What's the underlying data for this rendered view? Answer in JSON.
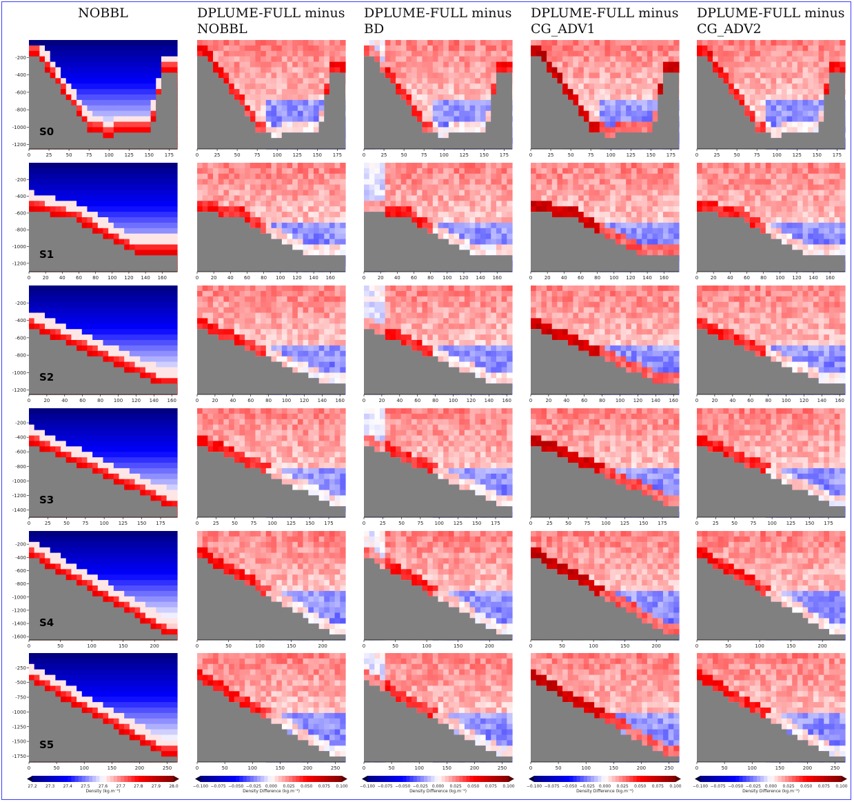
{
  "column_titles": [
    {
      "line1": "NOBBL",
      "line2": ""
    },
    {
      "line1": "DPLUME-FULL   minus",
      "line2": "NOBBL"
    },
    {
      "line1": "DPLUME-FULL   minus",
      "line2": "BD"
    },
    {
      "line1": "DPLUME-FULL   minus",
      "line2": "CG_ADV1"
    },
    {
      "line1": "DPLUME-FULL   minus",
      "line2": "CG_ADV2"
    }
  ],
  "colors": {
    "positive": "#b40426",
    "negative": "#0000ff",
    "neutral": "#ffffff",
    "topography": "#808080",
    "frame_border": "#3a3aff"
  },
  "chart_data": {
    "type": "heatmap",
    "layout": "6 rows (sections) x 5 columns (experiments)",
    "rows": [
      {
        "section": "S0",
        "xticks": [
          "0",
          "25",
          "50",
          "75",
          "100",
          "125",
          "150",
          "175"
        ],
        "xmax": 185,
        "yticks": [
          "-200",
          "-400",
          "-600",
          "-800",
          "-1000",
          "-1200"
        ],
        "ylim": [
          -1250,
          0
        ]
      },
      {
        "section": "S1",
        "xticks": [
          "0",
          "20",
          "40",
          "60",
          "80",
          "100",
          "120",
          "140",
          "160"
        ],
        "xmax": 178,
        "yticks": [
          "-200",
          "-400",
          "-600",
          "-800",
          "-1000",
          "-1200"
        ],
        "ylim": [
          -1300,
          0
        ]
      },
      {
        "section": "S2",
        "xticks": [
          "0",
          "20",
          "40",
          "60",
          "80",
          "100",
          "120",
          "140",
          "160"
        ],
        "xmax": 166,
        "yticks": [
          "-200",
          "-400",
          "-600",
          "-800",
          "-1000",
          "-1200"
        ],
        "ylim": [
          -1250,
          0
        ]
      },
      {
        "section": "S3",
        "xticks": [
          "0",
          "25",
          "50",
          "75",
          "100",
          "125",
          "150",
          "175"
        ],
        "xmax": 197,
        "yticks": [
          "-200",
          "-400",
          "-600",
          "-800",
          "-1000",
          "-1200",
          "-1400"
        ],
        "ylim": [
          -1500,
          0
        ]
      },
      {
        "section": "S4",
        "xticks": [
          "0",
          "50",
          "100",
          "150",
          "200"
        ],
        "xmax": 236,
        "yticks": [
          "-200",
          "-400",
          "-600",
          "-800",
          "-1000",
          "-1200",
          "-1400",
          "-1600"
        ],
        "ylim": [
          -1650,
          0
        ]
      },
      {
        "section": "S5",
        "xticks": [
          "0",
          "50",
          "100",
          "150",
          "200",
          "250"
        ],
        "xmax": 268,
        "yticks": [
          "-250",
          "-500",
          "-750",
          "-1000",
          "-1250",
          "-1500",
          "-1750"
        ],
        "ylim": [
          -1850,
          0
        ]
      }
    ],
    "colorbars": [
      {
        "label": "Density (kg.m⁻³)",
        "ticks": [
          "27.2",
          "27.3",
          "27.4",
          "27.5",
          "27.6",
          "27.7",
          "27.8",
          "27.9",
          "28.0"
        ],
        "range": [
          27.2,
          28.0
        ]
      },
      {
        "label": "Density Difference (kg.m⁻³)",
        "ticks": [
          "−0.100",
          "−0.075",
          "−0.050",
          "−0.025",
          "0.000",
          "0.025",
          "0.050",
          "0.075",
          "0.100"
        ],
        "range": [
          -0.1,
          0.1
        ]
      },
      {
        "label": "Density Difference (kg.m⁻³)",
        "ticks": [
          "−0.100",
          "−0.075",
          "−0.050",
          "−0.025",
          "0.000",
          "0.025",
          "0.050",
          "0.075",
          "0.100"
        ],
        "range": [
          -0.1,
          0.1
        ]
      },
      {
        "label": "Density Difference (kg.m⁻³)",
        "ticks": [
          "−0.100",
          "−0.075",
          "−0.050",
          "−0.025",
          "0.000",
          "0.025",
          "0.050",
          "0.075",
          "0.100"
        ],
        "range": [
          -0.1,
          0.1
        ]
      },
      {
        "label": "Density Difference (kg.m⁻³)",
        "ticks": [
          "−0.100",
          "−0.075",
          "−0.050",
          "−0.025",
          "0.000",
          "0.025",
          "0.050",
          "0.075",
          "0.100"
        ],
        "range": [
          -0.1,
          0.1
        ]
      }
    ]
  }
}
